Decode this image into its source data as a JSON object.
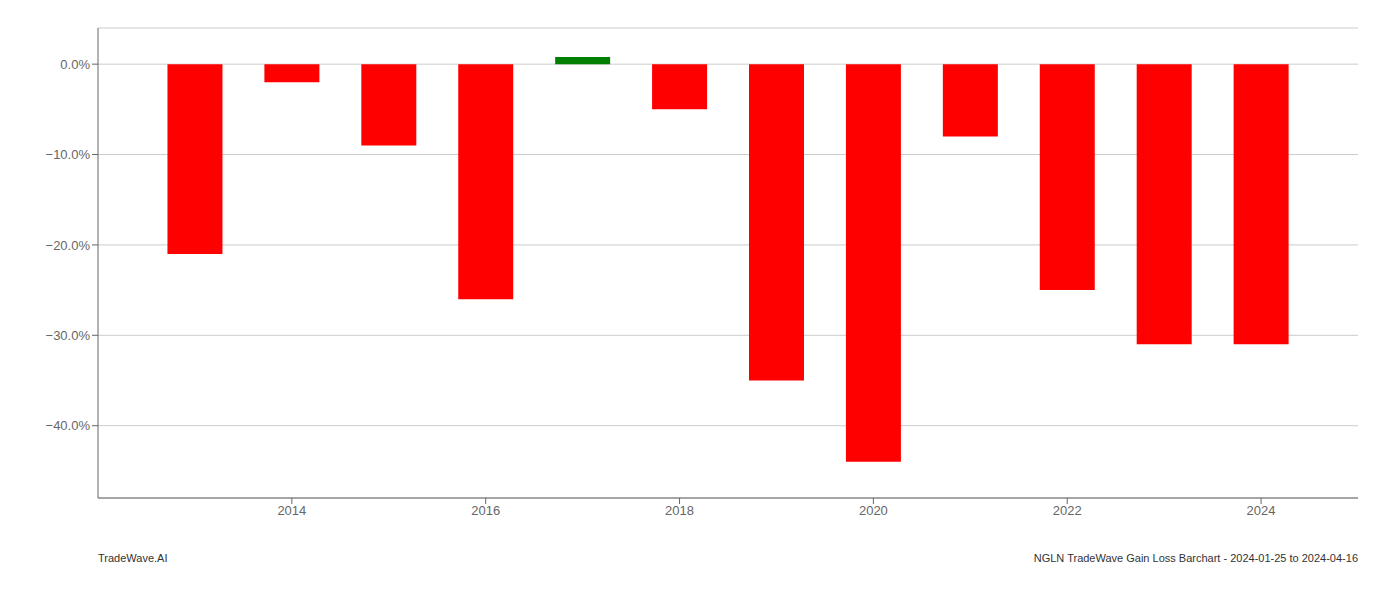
{
  "chart_data": {
    "type": "bar",
    "x": [
      2013,
      2014,
      2015,
      2016,
      2017,
      2018,
      2019,
      2020,
      2021,
      2022,
      2023,
      2024
    ],
    "values": [
      -0.21,
      -0.02,
      -0.09,
      -0.26,
      0.008,
      -0.05,
      -0.35,
      -0.44,
      -0.08,
      -0.25,
      -0.31,
      -0.31
    ],
    "colors": [
      "#ff0000",
      "#ff0000",
      "#ff0000",
      "#ff0000",
      "#008000",
      "#ff0000",
      "#ff0000",
      "#ff0000",
      "#ff0000",
      "#ff0000",
      "#ff0000",
      "#ff0000"
    ],
    "xlim": [
      2012,
      2025
    ],
    "xticks": [
      2014,
      2016,
      2018,
      2020,
      2022,
      2024
    ],
    "ylim": [
      -0.48,
      0.04
    ],
    "yticks": [
      {
        "value": 0.0,
        "label": "0.0%"
      },
      {
        "value": -0.1,
        "label": "−10.0%"
      },
      {
        "value": -0.2,
        "label": "−20.0%"
      },
      {
        "value": -0.3,
        "label": "−30.0%"
      },
      {
        "value": -0.4,
        "label": "−40.0%"
      }
    ],
    "grid": true,
    "annotations": [
      "TradeWave.AI",
      "NGLN TradeWave Gain Loss Barchart - 2024-01-25 to 2024-04-16"
    ]
  }
}
